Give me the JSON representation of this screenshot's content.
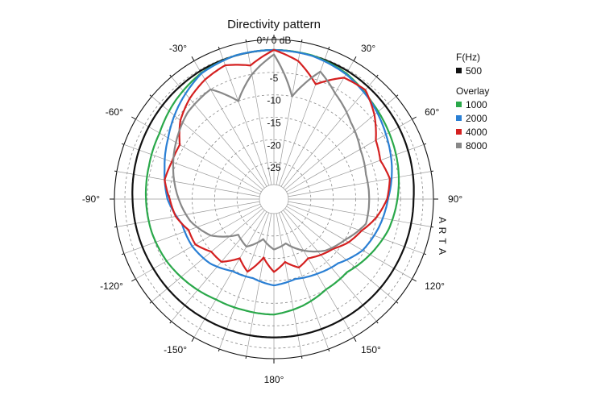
{
  "chart_data": {
    "type": "polar-line",
    "title": "Directivity pattern",
    "radial_labels": [
      "0°/ 0 dB",
      "-5",
      "-10",
      "-15",
      "-20",
      "-25"
    ],
    "radial_range_db": [
      -30,
      0
    ],
    "angle_labels": [
      {
        "angle": 0,
        "label": ""
      },
      {
        "angle": 30,
        "label": "30°"
      },
      {
        "angle": 60,
        "label": "60°"
      },
      {
        "angle": 90,
        "label": "90°"
      },
      {
        "angle": 120,
        "label": "120°"
      },
      {
        "angle": 150,
        "label": "150°"
      },
      {
        "angle": 180,
        "label": "180°"
      },
      {
        "angle": -150,
        "label": "-150°"
      },
      {
        "angle": -120,
        "label": "-120°"
      },
      {
        "angle": -90,
        "label": "-90°"
      },
      {
        "angle": -60,
        "label": "-60°"
      },
      {
        "angle": -30,
        "label": "-30°"
      }
    ],
    "legend": {
      "header": "F(Hz)",
      "overlay_header": "Overlay",
      "entries": [
        {
          "label": "500",
          "color": "#111111"
        },
        {
          "label": "1000",
          "color": "#2aa84a"
        },
        {
          "label": "2000",
          "color": "#2a7fd4"
        },
        {
          "label": "4000",
          "color": "#d42020"
        },
        {
          "label": "8000",
          "color": "#888888"
        }
      ]
    },
    "watermark": "ARTA",
    "series": [
      {
        "name": "500",
        "color": "#111111",
        "angles": [
          -180,
          -150,
          -120,
          -90,
          -60,
          -30,
          0,
          30,
          60,
          90,
          120,
          150,
          180
        ],
        "db": [
          -2.4,
          -2.4,
          -2.2,
          -1.7,
          -1.0,
          -0.3,
          0,
          -0.3,
          -1.1,
          -2.1,
          -2.3,
          -2.4,
          -2.4
        ]
      },
      {
        "name": "1000",
        "color": "#2aa84a",
        "angles": [
          -180,
          -165,
          -150,
          -135,
          -120,
          -105,
          -90,
          -75,
          -60,
          -45,
          -30,
          -15,
          0,
          15,
          30,
          45,
          60,
          75,
          90,
          105,
          120,
          135,
          150,
          165,
          180
        ],
        "db": [
          -7.5,
          -7.6,
          -7.4,
          -6.5,
          -5.6,
          -5,
          -4.7,
          -4.4,
          -3.8,
          -2.2,
          -0.8,
          -0.1,
          0,
          -0.1,
          -0.9,
          -2.5,
          -3.6,
          -4.6,
          -5.7,
          -6.8,
          -8.5,
          -10.2,
          -10.0,
          -8.6,
          -7.5
        ]
      },
      {
        "name": "2000",
        "color": "#2a7fd4",
        "angles": [
          -180,
          -165,
          -150,
          -135,
          -120,
          -105,
          -90,
          -75,
          -60,
          -45,
          -30,
          -15,
          0,
          15,
          30,
          45,
          60,
          75,
          90,
          105,
          120,
          135,
          150,
          165,
          180
        ],
        "db": [
          -14,
          -15,
          -14.7,
          -13,
          -12.2,
          -12,
          -9.5,
          -8,
          -6,
          -3.4,
          -0.9,
          -0.1,
          0,
          -0.2,
          -1.1,
          -2.6,
          -4.4,
          -6,
          -7.8,
          -9,
          -10.4,
          -13,
          -14,
          -14.8,
          -14
        ]
      },
      {
        "name": "4000",
        "color": "#d42020",
        "angles": [
          -180,
          -170,
          -160,
          -150,
          -140,
          -130,
          -120,
          -110,
          -100,
          -90,
          -80,
          -70,
          -60,
          -50,
          -40,
          -30,
          -20,
          -10,
          0,
          10,
          20,
          30,
          40,
          50,
          60,
          70,
          80,
          90,
          100,
          110,
          120,
          130,
          140,
          150,
          160,
          170,
          180
        ],
        "db": [
          -17,
          -20,
          -16,
          -18,
          -15,
          -15,
          -13,
          -13,
          -11,
          -10,
          -8.5,
          -9,
          -9,
          -6,
          -4,
          -2.5,
          -1.5,
          -3,
          0,
          -2,
          -6,
          -2,
          -1.5,
          -4,
          -7,
          -8,
          -7,
          -8,
          -10,
          -12.5,
          -14,
          -16,
          -17,
          -18,
          -17,
          -19,
          -17
        ]
      },
      {
        "name": "8000",
        "color": "#888888",
        "angles": [
          -180,
          -165,
          -150,
          -135,
          -120,
          -105,
          -90,
          -75,
          -60,
          -45,
          -30,
          -20,
          -10,
          0,
          10,
          20,
          30,
          45,
          60,
          75,
          90,
          105,
          120,
          135,
          150,
          165,
          180
        ],
        "db": [
          -22,
          -24,
          -21,
          -22,
          -17,
          -14,
          -12,
          -10,
          -8,
          -6,
          -5,
          -10,
          -5,
          -1,
          -10,
          -3,
          -6,
          -9,
          -11,
          -12,
          -12,
          -12,
          -15,
          -17,
          -20,
          -23,
          -22
        ]
      }
    ]
  }
}
